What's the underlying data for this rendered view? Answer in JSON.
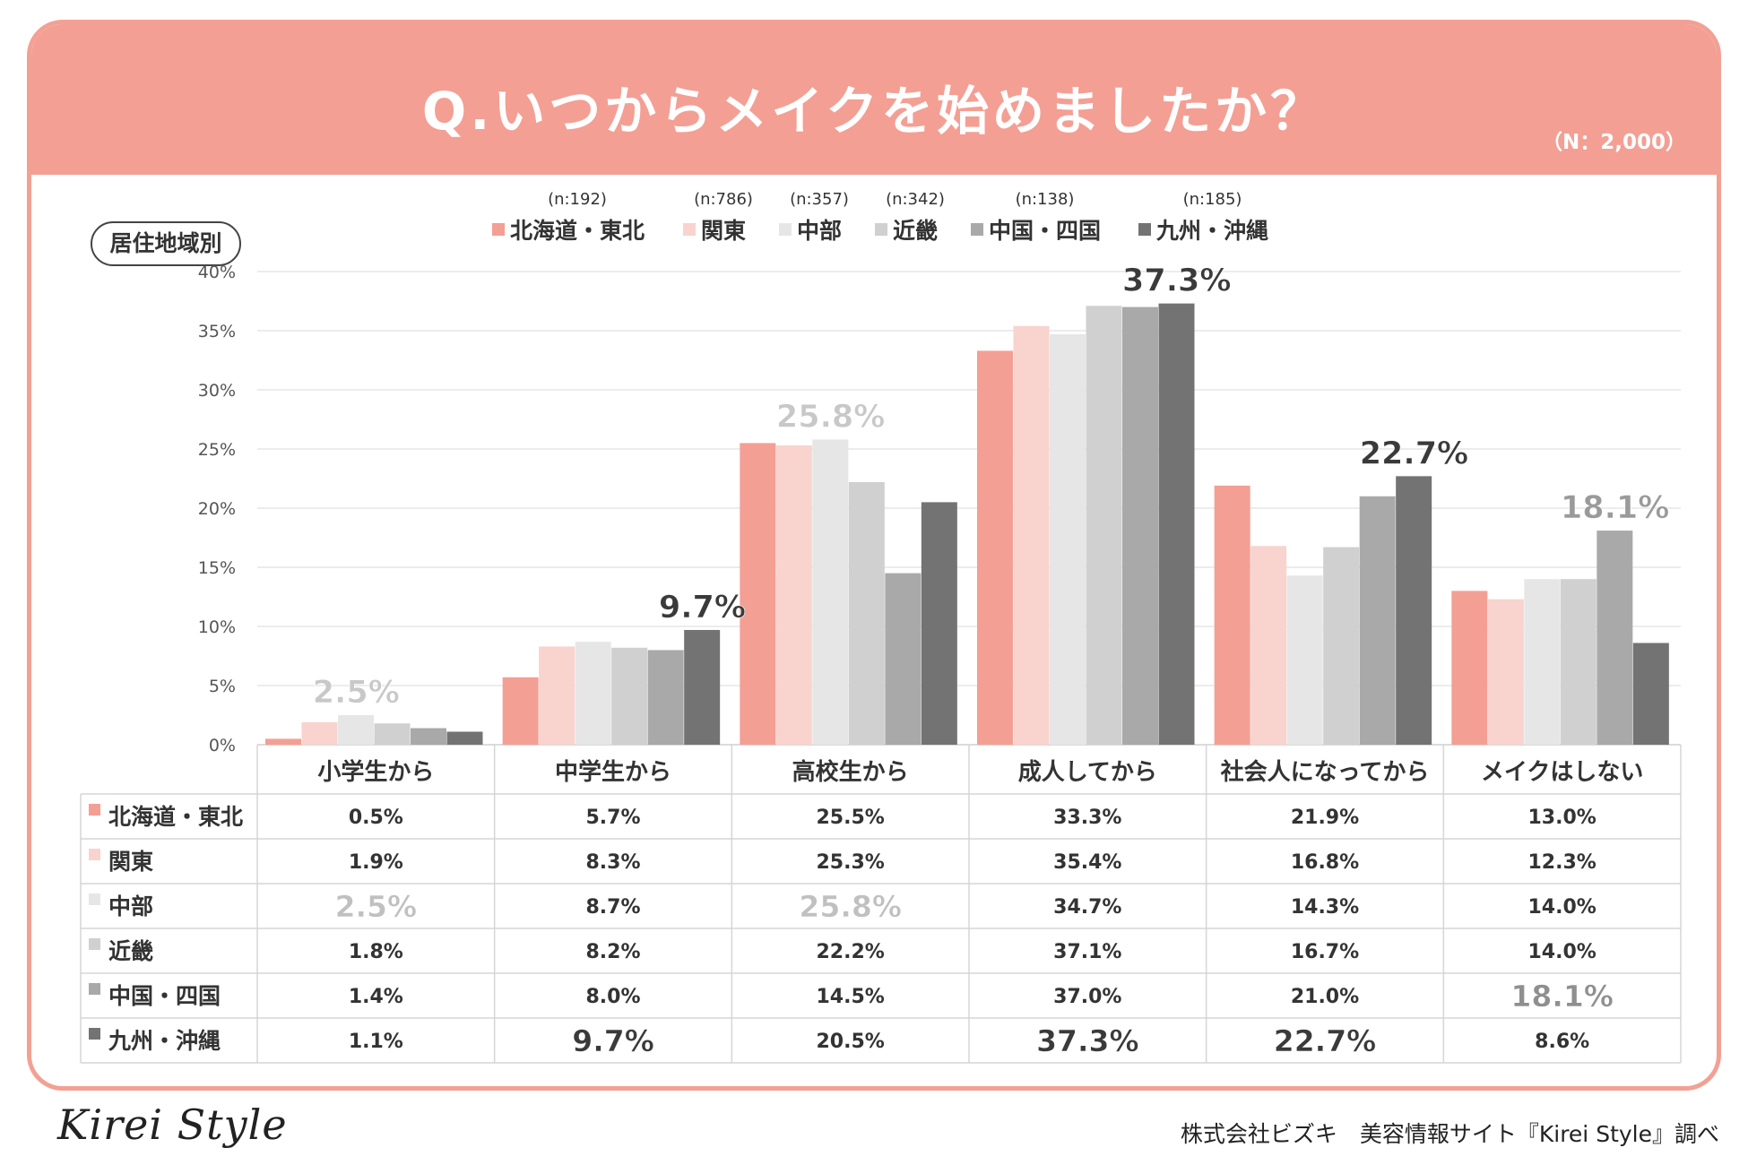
{
  "header": {
    "title": "Q.いつからメイクを始めましたか？",
    "sample": "（N：2,000）"
  },
  "region_badge": "居住地域別",
  "colors": {
    "banner": "#f49f94",
    "series": [
      "#f49f94",
      "#f9d3ce",
      "#e6e6e6",
      "#d0d0d0",
      "#a9a9a9",
      "#737373"
    ],
    "grid": "#e6e6e6",
    "table_border": "#d5d5d5"
  },
  "chart_data": {
    "type": "bar",
    "title": "Q.いつからメイクを始めましたか？",
    "categories": [
      "小学生から",
      "中学生から",
      "高校生から",
      "成人してから",
      "社会人になってから",
      "メイクはしない"
    ],
    "series": [
      {
        "name": "北海道・東北",
        "n": "(n:192)",
        "values": [
          0.5,
          5.7,
          25.5,
          33.3,
          21.9,
          13.0
        ]
      },
      {
        "name": "関東",
        "n": "(n:786)",
        "values": [
          1.9,
          8.3,
          25.3,
          35.4,
          16.8,
          12.3
        ]
      },
      {
        "name": "中部",
        "n": "(n:357)",
        "values": [
          2.5,
          8.7,
          25.8,
          34.7,
          14.3,
          14.0
        ]
      },
      {
        "name": "近畿",
        "n": "(n:342)",
        "values": [
          1.8,
          8.2,
          22.2,
          37.1,
          16.7,
          14.0
        ]
      },
      {
        "name": "中国・四国",
        "n": "(n:138)",
        "values": [
          1.4,
          8.0,
          14.5,
          37.0,
          21.0,
          18.1
        ]
      },
      {
        "name": "九州・沖縄",
        "n": "(n:185)",
        "values": [
          1.1,
          9.7,
          20.5,
          37.3,
          22.7,
          8.6
        ]
      }
    ],
    "ylim": [
      0,
      40
    ],
    "yticks": [
      "0%",
      "5%",
      "10%",
      "15%",
      "20%",
      "25%",
      "30%",
      "35%",
      "40%"
    ],
    "peaks": [
      {
        "category": 0,
        "series": 2,
        "label": "2.5%"
      },
      {
        "category": 1,
        "series": 5,
        "label": "9.7%"
      },
      {
        "category": 2,
        "series": 2,
        "label": "25.8%"
      },
      {
        "category": 3,
        "series": 5,
        "label": "37.3%"
      },
      {
        "category": 4,
        "series": 5,
        "label": "22.7%"
      },
      {
        "category": 5,
        "series": 4,
        "label": "18.1%"
      }
    ],
    "table": {
      "rows": [
        [
          "0.5%",
          "5.7%",
          "25.5%",
          "33.3%",
          "21.9%",
          "13.0%"
        ],
        [
          "1.9%",
          "8.3%",
          "25.3%",
          "35.4%",
          "16.8%",
          "12.3%"
        ],
        [
          "2.5%",
          "8.7%",
          "25.8%",
          "34.7%",
          "14.3%",
          "14.0%"
        ],
        [
          "1.8%",
          "8.2%",
          "22.2%",
          "37.1%",
          "16.7%",
          "14.0%"
        ],
        [
          "1.4%",
          "8.0%",
          "14.5%",
          "37.0%",
          "21.0%",
          "18.1%"
        ],
        [
          "1.1%",
          "9.7%",
          "20.5%",
          "37.3%",
          "22.7%",
          "8.6%"
        ]
      ]
    }
  },
  "footer": {
    "logo": "Kirei Style",
    "credit": "株式会社ビズキ　美容情報サイト『Kirei Style』調べ"
  }
}
